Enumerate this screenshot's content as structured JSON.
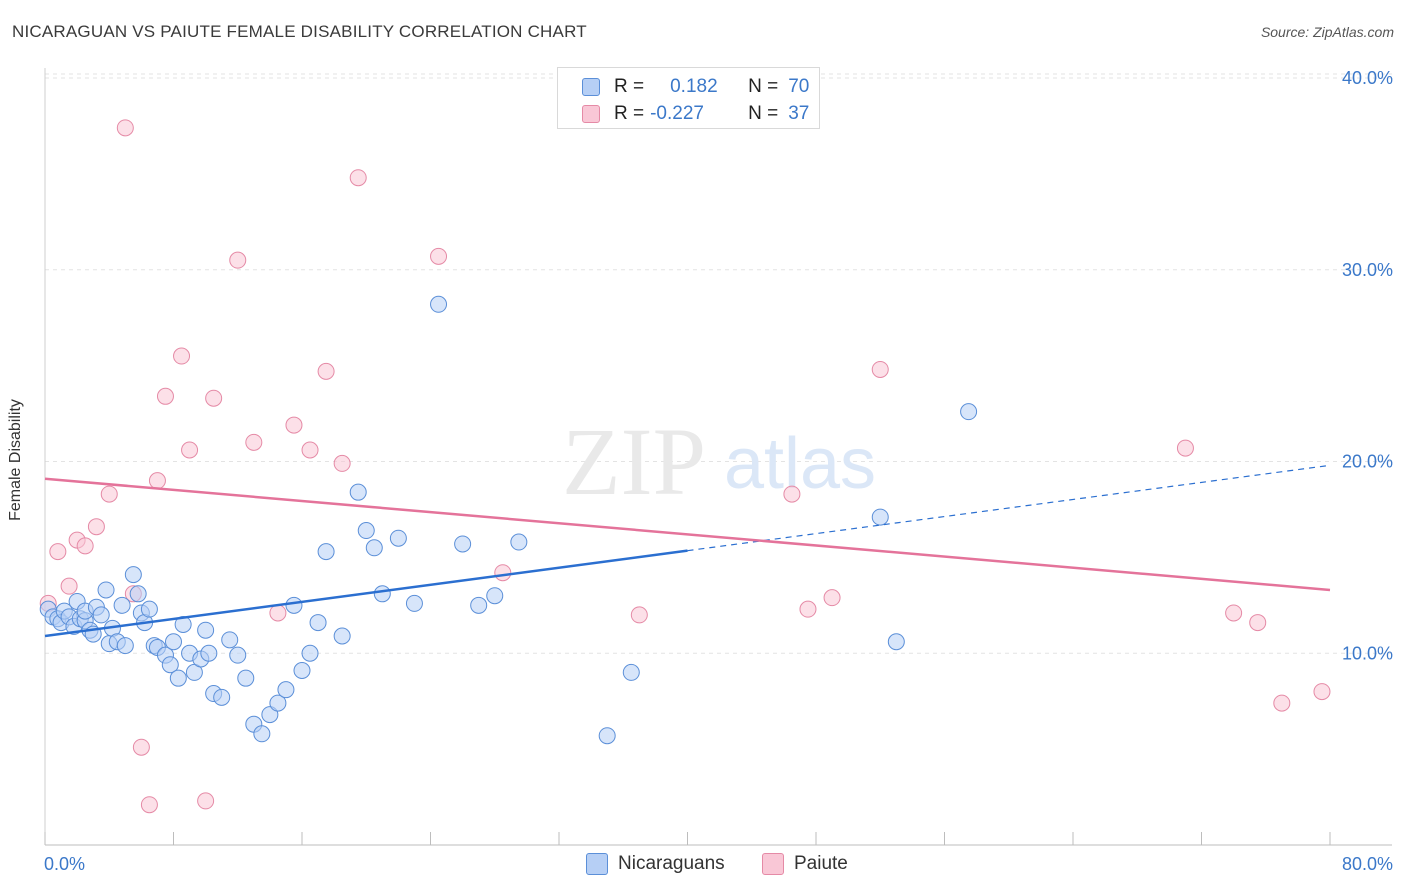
{
  "header": {
    "title": "NICARAGUAN VS PAIUTE FEMALE DISABILITY CORRELATION CHART",
    "source": "Source: ZipAtlas.com"
  },
  "watermark": {
    "zip": "ZIP",
    "atlas": "atlas"
  },
  "legend": {
    "rows": [
      {
        "r_label": "R =",
        "r_value": "0.182",
        "n_label": "N =",
        "n_value": "70"
      },
      {
        "r_label": "R =",
        "r_value": "-0.227",
        "n_label": "N =",
        "n_value": "37"
      }
    ]
  },
  "colors": {
    "blue_fill": "#b6cff5",
    "blue_stroke": "#5b8fd8",
    "blue_line": "#2b6fd0",
    "pink_fill": "#f9c7d6",
    "pink_stroke": "#e58aa6",
    "pink_line": "#e4739a",
    "axis_text": "#3b78c9"
  },
  "chart_data": {
    "type": "scatter",
    "title": "NICARAGUAN VS PAIUTE FEMALE DISABILITY CORRELATION CHART",
    "xlabel": "",
    "ylabel": "Female Disability",
    "xlim": [
      0,
      80
    ],
    "ylim": [
      0,
      40
    ],
    "x_tick_labels": [
      "0.0%",
      "80.0%"
    ],
    "y_ticks": [
      10,
      20,
      30,
      40
    ],
    "y_tick_labels": [
      "10.0%",
      "20.0%",
      "30.0%",
      "40.0%"
    ],
    "grid": true,
    "series": [
      {
        "name": "Nicaraguans",
        "r": 0.182,
        "n": 70,
        "trend": {
          "x0": 0,
          "y0": 10.9,
          "x1": 80,
          "y1": 19.8,
          "solid_until_x": 40
        },
        "points": [
          [
            0.2,
            12.3
          ],
          [
            0.5,
            11.9
          ],
          [
            0.8,
            11.8
          ],
          [
            1.0,
            11.6
          ],
          [
            1.2,
            12.2
          ],
          [
            1.5,
            11.9
          ],
          [
            1.8,
            11.4
          ],
          [
            2.0,
            12.7
          ],
          [
            2.2,
            11.8
          ],
          [
            2.5,
            11.7
          ],
          [
            2.5,
            12.2
          ],
          [
            2.8,
            11.2
          ],
          [
            3.0,
            11.0
          ],
          [
            3.2,
            12.4
          ],
          [
            3.5,
            12.0
          ],
          [
            3.8,
            13.3
          ],
          [
            4.0,
            10.5
          ],
          [
            4.2,
            11.3
          ],
          [
            4.5,
            10.6
          ],
          [
            4.8,
            12.5
          ],
          [
            5.0,
            10.4
          ],
          [
            5.5,
            14.1
          ],
          [
            5.8,
            13.1
          ],
          [
            6.0,
            12.1
          ],
          [
            6.2,
            11.6
          ],
          [
            6.5,
            12.3
          ],
          [
            6.8,
            10.4
          ],
          [
            7.0,
            10.3
          ],
          [
            7.5,
            9.9
          ],
          [
            7.8,
            9.4
          ],
          [
            8.0,
            10.6
          ],
          [
            8.3,
            8.7
          ],
          [
            8.6,
            11.5
          ],
          [
            9.0,
            10.0
          ],
          [
            9.3,
            9.0
          ],
          [
            9.7,
            9.7
          ],
          [
            10.0,
            11.2
          ],
          [
            10.2,
            10.0
          ],
          [
            10.5,
            7.9
          ],
          [
            11.0,
            7.7
          ],
          [
            11.5,
            10.7
          ],
          [
            12.0,
            9.9
          ],
          [
            12.5,
            8.7
          ],
          [
            13.0,
            6.3
          ],
          [
            13.5,
            5.8
          ],
          [
            14.0,
            6.8
          ],
          [
            14.5,
            7.4
          ],
          [
            15.0,
            8.1
          ],
          [
            15.5,
            12.5
          ],
          [
            16.0,
            9.1
          ],
          [
            16.5,
            10.0
          ],
          [
            17.0,
            11.6
          ],
          [
            17.5,
            15.3
          ],
          [
            18.5,
            10.9
          ],
          [
            19.5,
            18.4
          ],
          [
            20.0,
            16.4
          ],
          [
            20.5,
            15.5
          ],
          [
            21.0,
            13.1
          ],
          [
            22.0,
            16.0
          ],
          [
            23.0,
            12.6
          ],
          [
            24.5,
            28.2
          ],
          [
            26.0,
            15.7
          ],
          [
            27.0,
            12.5
          ],
          [
            28.0,
            13.0
          ],
          [
            29.5,
            15.8
          ],
          [
            35.0,
            5.7
          ],
          [
            36.5,
            9.0
          ],
          [
            52.0,
            17.1
          ],
          [
            53.0,
            10.6
          ],
          [
            57.5,
            22.6
          ]
        ]
      },
      {
        "name": "Paiute",
        "r": -0.227,
        "n": 37,
        "trend": {
          "x0": 0,
          "y0": 19.1,
          "x1": 80,
          "y1": 13.3
        },
        "points": [
          [
            0.2,
            12.6
          ],
          [
            0.8,
            15.3
          ],
          [
            1.5,
            13.5
          ],
          [
            2.0,
            15.9
          ],
          [
            2.5,
            15.6
          ],
          [
            3.2,
            16.6
          ],
          [
            4.0,
            18.3
          ],
          [
            5.0,
            37.4
          ],
          [
            5.5,
            13.1
          ],
          [
            6.0,
            5.1
          ],
          [
            6.5,
            2.1
          ],
          [
            7.0,
            19.0
          ],
          [
            7.5,
            23.4
          ],
          [
            8.5,
            25.5
          ],
          [
            9.0,
            20.6
          ],
          [
            10.0,
            2.3
          ],
          [
            10.5,
            23.3
          ],
          [
            12.0,
            30.5
          ],
          [
            13.0,
            21.0
          ],
          [
            14.5,
            12.1
          ],
          [
            15.5,
            21.9
          ],
          [
            16.5,
            20.6
          ],
          [
            17.5,
            24.7
          ],
          [
            18.5,
            19.9
          ],
          [
            19.5,
            34.8
          ],
          [
            24.5,
            30.7
          ],
          [
            28.5,
            14.2
          ],
          [
            37.0,
            12.0
          ],
          [
            46.5,
            18.3
          ],
          [
            47.5,
            12.3
          ],
          [
            49.0,
            12.9
          ],
          [
            52.0,
            24.8
          ],
          [
            71.0,
            20.7
          ],
          [
            74.0,
            12.1
          ],
          [
            75.5,
            11.6
          ],
          [
            77.0,
            7.4
          ],
          [
            79.5,
            8.0
          ]
        ]
      }
    ]
  },
  "bottom_legend": {
    "items": [
      "Nicaraguans",
      "Paiute"
    ]
  }
}
